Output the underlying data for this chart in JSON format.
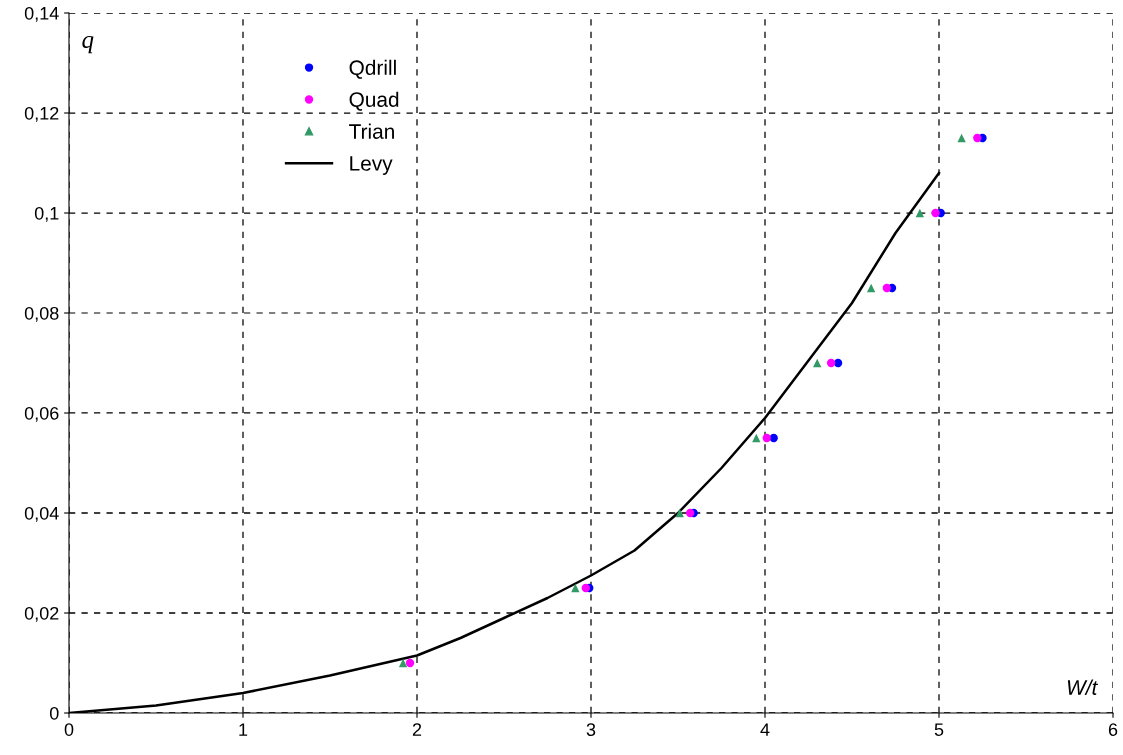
{
  "chart_data": {
    "type": "scatter",
    "xlabel": "W/t",
    "ylabel": "q",
    "xlim": [
      0,
      6
    ],
    "xticks": [
      0,
      1,
      2,
      3,
      4,
      5,
      6
    ],
    "ylim": [
      0,
      0.14
    ],
    "yticks": [
      0,
      {
        "value": 0.02,
        "label": "0,02"
      },
      {
        "value": 0.04,
        "label": "0,04"
      },
      {
        "value": 0.06,
        "label": "0,06"
      },
      {
        "value": 0.08,
        "label": "0,08"
      },
      {
        "value": 0.1,
        "label": "0,1"
      },
      {
        "value": 0.12,
        "label": "0,12"
      },
      {
        "value": 0.14,
        "label": "0,14"
      }
    ],
    "grid": true,
    "legend": "top left",
    "series": [
      {
        "name": "Qdrill",
        "marker": "circle",
        "color": "#0000ff",
        "x": [
          null,
          2.99,
          3.59,
          4.05,
          4.42,
          4.73,
          5.01,
          5.25
        ],
        "values": [
          null,
          0.025,
          0.04,
          0.055,
          0.07,
          0.085,
          0.1,
          0.115
        ]
      },
      {
        "name": "Quad",
        "marker": "circle",
        "color": "#ff00ff",
        "x": [
          1.96,
          2.97,
          3.57,
          4.01,
          4.38,
          4.7,
          4.98,
          5.22
        ],
        "values": [
          0.01,
          0.025,
          0.04,
          0.055,
          0.07,
          0.085,
          0.1,
          0.115
        ]
      },
      {
        "name": "Trian",
        "marker": "triangle",
        "color": "#339966",
        "x": [
          1.92,
          2.91,
          3.51,
          3.95,
          4.3,
          4.61,
          4.89,
          5.13
        ],
        "values": [
          0.01,
          0.025,
          0.04,
          0.055,
          0.07,
          0.085,
          0.1,
          0.115
        ]
      },
      {
        "name": "Levy",
        "type": "line",
        "marker": "none",
        "line_style": "solid",
        "color": "#000000",
        "x": [
          0,
          0.5,
          1,
          1.5,
          2,
          2.25,
          2.5,
          2.75,
          3,
          3.25,
          3.5,
          3.75,
          4,
          4.25,
          4.5,
          4.75,
          5
        ],
        "values": [
          0,
          0.0015,
          0.004,
          0.0075,
          0.0115,
          0.015,
          0.019,
          0.023,
          0.0275,
          0.0325,
          0.04,
          0.049,
          0.059,
          0.0705,
          0.082,
          0.096,
          0.108
        ]
      }
    ]
  }
}
